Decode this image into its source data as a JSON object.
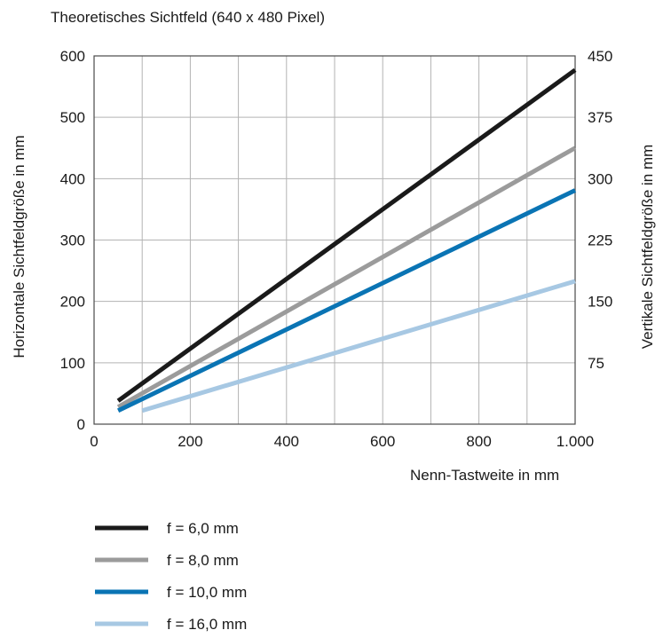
{
  "chart_data": {
    "type": "line",
    "title": "Theoretisches Sichtfeld (640 x 480 Pixel)",
    "xlabel": "Nenn-Tastweite in mm",
    "ylabel": "Horizontale Sichtfeldgröße in mm",
    "y2label": "Vertikale Sichtfeldgröße in mm",
    "xlim": [
      0,
      1000
    ],
    "ylim": [
      0,
      600
    ],
    "y2lim": [
      0,
      450
    ],
    "x_ticks": [
      "0",
      "200",
      "400",
      "600",
      "800",
      "1.000"
    ],
    "y_ticks": [
      "0",
      "100",
      "200",
      "300",
      "400",
      "500",
      "600"
    ],
    "y2_ticks": [
      "75",
      "150",
      "225",
      "300",
      "375",
      "450"
    ],
    "grid": true,
    "legend_position": "bottom-left",
    "series": [
      {
        "name": "f = 6,0 mm",
        "color": "#1a1a1a",
        "x": [
          50,
          1000
        ],
        "y": [
          38,
          577
        ]
      },
      {
        "name": "f = 8,0 mm",
        "color": "#9b9b9b",
        "x": [
          50,
          1000
        ],
        "y": [
          28,
          450
        ]
      },
      {
        "name": "f = 10,0 mm",
        "color": "#0a74b4",
        "x": [
          50,
          1000
        ],
        "y": [
          22,
          381
        ]
      },
      {
        "name": "f = 16,0 mm",
        "color": "#a7c8e3",
        "x": [
          100,
          1000
        ],
        "y": [
          22,
          233
        ]
      }
    ]
  }
}
